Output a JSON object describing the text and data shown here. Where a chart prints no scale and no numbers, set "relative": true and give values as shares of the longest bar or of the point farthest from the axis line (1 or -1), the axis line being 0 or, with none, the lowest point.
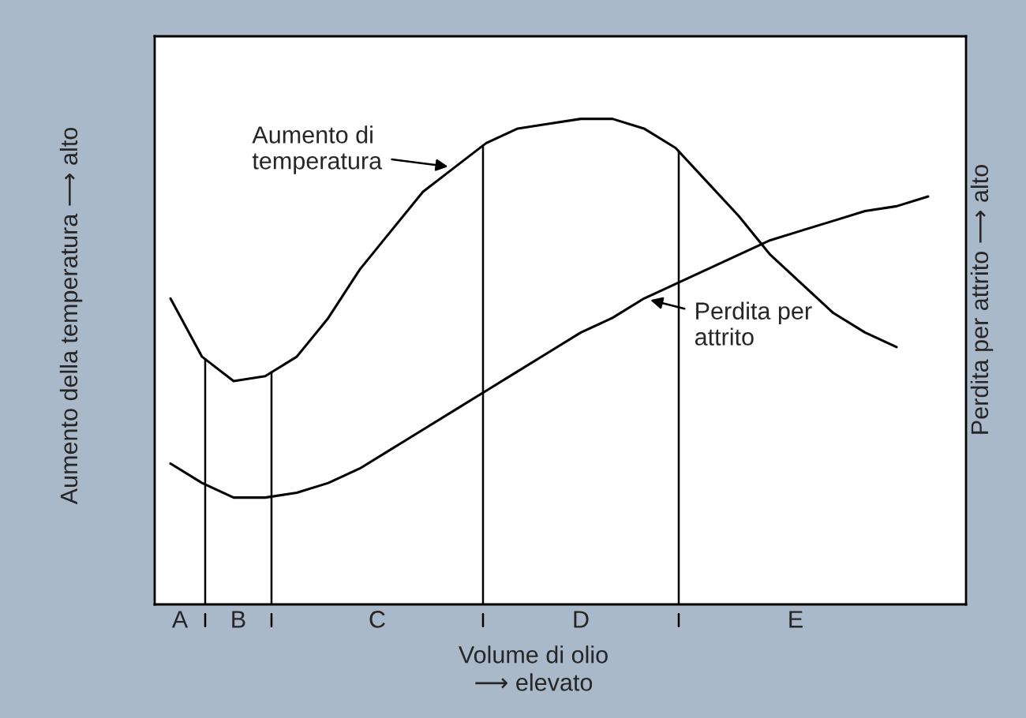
{
  "chart_data": {
    "type": "line",
    "relative": true,
    "xlabel": "Volume di olio\n⟶ elevato",
    "ylabel": "Aumento della temperatura ⟶ alto",
    "y2label": "Perdita per attrito ⟶ alto",
    "categories": [
      null,
      null,
      null,
      null,
      null,
      null,
      null,
      null,
      null,
      null,
      null,
      null,
      null,
      null,
      null,
      null,
      null,
      null,
      null,
      null,
      null,
      null,
      null,
      null,
      null
    ],
    "series": [
      {
        "name": "Aumento di\ntemperatura",
        "color": "#000000",
        "values": [
          0.63,
          0.51,
          0.46,
          0.47,
          0.51,
          0.59,
          0.69,
          0.77,
          0.85,
          0.9,
          0.95,
          0.98,
          0.99,
          1,
          1,
          0.98,
          0.94,
          0.87,
          0.8,
          0.72,
          0.66,
          0.6,
          0.56,
          0.53,
          null
        ]
      },
      {
        "name": "Perdita per\nattrito",
        "color": "#000000",
        "values": [
          0.29,
          0.25,
          0.22,
          0.22,
          0.23,
          0.25,
          0.28,
          0.32,
          0.36,
          0.4,
          0.44,
          0.48,
          0.52,
          0.56,
          0.59,
          0.63,
          0.66,
          0.69,
          0.72,
          0.75,
          0.77,
          0.79,
          0.81,
          0.82,
          0.84
        ]
      }
    ],
    "annotations": [
      "A",
      "B",
      "C",
      "D",
      "E"
    ],
    "line_style": "solid"
  }
}
